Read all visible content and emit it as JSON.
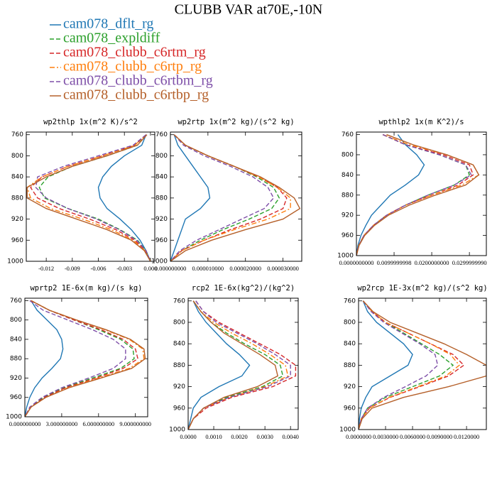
{
  "title": "CLUBB VAR at70E,-10N",
  "legend": [
    {
      "name": "cam078_dflt_rg",
      "color": "#1f77b4",
      "dash": "solid"
    },
    {
      "name": "cam078_expldiff",
      "color": "#2ca02c",
      "dash": "dash"
    },
    {
      "name": "cam078_clubb_c6rtm_rg",
      "color": "#d62728",
      "dash": "dash"
    },
    {
      "name": "cam078_clubb_c6rtp_rg",
      "color": "#ff7f0e",
      "dash": "dashdot"
    },
    {
      "name": "cam078_clubb_c6rtbm_rg",
      "color": "#7e4fa8",
      "dash": "dash"
    },
    {
      "name": "cam078_clubb_c6rtbp_rg",
      "color": "#b5602a",
      "dash": "solid"
    }
  ],
  "chart_data": [
    {
      "type": "line",
      "title": "wp2thlp   1x(m^2 K)/s^2",
      "yinvert": true,
      "y": [
        760,
        780,
        800,
        820,
        840,
        860,
        880,
        900,
        920,
        940,
        960,
        980,
        1000
      ],
      "xlim": [
        -0.0143,
        0.0005
      ],
      "xticks": [
        -0.012,
        -0.009,
        -0.006,
        -0.003,
        {
          "value": 0,
          "label": "0.000"
        }
      ],
      "ylim": [
        755,
        1000
      ],
      "yticks": [
        760,
        800,
        840,
        880,
        920,
        960,
        1000
      ],
      "series": [
        {
          "values": [
            -0.0005,
            -0.001,
            -0.003,
            -0.0045,
            -0.0055,
            -0.006,
            -0.0058,
            -0.005,
            -0.0035,
            -0.0022,
            -0.0012,
            -0.0005,
            0
          ]
        },
        {
          "values": [
            -0.0005,
            -0.0015,
            -0.005,
            -0.009,
            -0.0118,
            -0.0128,
            -0.0122,
            -0.0095,
            -0.006,
            -0.0035,
            -0.0015,
            -0.0005,
            0
          ]
        },
        {
          "values": [
            -0.0005,
            -0.0018,
            -0.0055,
            -0.0095,
            -0.0125,
            -0.0138,
            -0.013,
            -0.0105,
            -0.007,
            -0.004,
            -0.0018,
            -0.0006,
            0
          ]
        },
        {
          "values": [
            -0.0005,
            -0.0018,
            -0.0055,
            -0.0095,
            -0.0125,
            -0.0142,
            -0.0138,
            -0.0115,
            -0.0078,
            -0.0045,
            -0.002,
            -0.0006,
            0
          ]
        },
        {
          "values": [
            -0.0005,
            -0.002,
            -0.006,
            -0.01,
            -0.013,
            -0.0132,
            -0.012,
            -0.0095,
            -0.0062,
            -0.0036,
            -0.0016,
            -0.0005,
            0
          ]
        },
        {
          "values": [
            -0.0004,
            -0.0015,
            -0.005,
            -0.009,
            -0.012,
            -0.0142,
            -0.0142,
            -0.012,
            -0.0085,
            -0.005,
            -0.0022,
            -0.0007,
            0
          ]
        }
      ]
    },
    {
      "type": "line",
      "title": "wp2rtp   1x(m^2 kg)/(s^2 kg)",
      "yinvert": true,
      "y": [
        760,
        780,
        800,
        820,
        840,
        860,
        880,
        900,
        920,
        940,
        960,
        980,
        1000
      ],
      "xlim": [
        0,
        3.5e-05
      ],
      "xticks": [
        {
          "value": 0,
          "label": "0.000000000"
        },
        {
          "value": 1e-05,
          "label": "0.000010000"
        },
        {
          "value": 2e-05,
          "label": "0.000020000"
        },
        {
          "value": 3e-05,
          "label": "0.000030000"
        }
      ],
      "ylim": [
        755,
        1000
      ],
      "yticks": [
        760,
        800,
        840,
        880,
        920,
        960,
        1000
      ],
      "series": [
        {
          "values": [
            1e-06,
            2e-06,
            4e-06,
            6e-06,
            8e-06,
            1e-05,
            1.05e-05,
            8e-06,
            4e-06,
            3e-06,
            2e-06,
            1e-06,
            0
          ]
        },
        {
          "values": [
            1e-06,
            4e-06,
            1e-05,
            1.7e-05,
            2.3e-05,
            2.75e-05,
            2.9e-05,
            2.7e-05,
            2.1e-05,
            1.4e-05,
            8e-06,
            3e-06,
            0
          ]
        },
        {
          "values": [
            1e-06,
            4e-06,
            1e-05,
            1.7e-05,
            2.35e-05,
            2.85e-05,
            3.1e-05,
            3e-05,
            2.4e-05,
            1.6e-05,
            9e-06,
            3e-06,
            0
          ]
        },
        {
          "values": [
            1e-06,
            4e-06,
            1e-05,
            1.7e-05,
            2.35e-05,
            2.85e-05,
            3.2e-05,
            3.2e-05,
            2.6e-05,
            1.7e-05,
            9e-06,
            3e-06,
            0
          ]
        },
        {
          "values": [
            1e-06,
            3.5e-06,
            9e-06,
            1.6e-05,
            2.2e-05,
            2.6e-05,
            2.75e-05,
            2.5e-05,
            1.9e-05,
            1.3e-05,
            7e-06,
            2.5e-06,
            0
          ]
        },
        {
          "values": [
            1e-06,
            4e-06,
            1e-05,
            1.7e-05,
            2.4e-05,
            2.9e-05,
            3.3e-05,
            3.45e-05,
            3e-05,
            2e-05,
            1.1e-05,
            4e-06,
            0
          ]
        }
      ]
    },
    {
      "type": "line",
      "title": "wpthlp2   1x(m K^2)/s",
      "yinvert": true,
      "y": [
        760,
        780,
        800,
        820,
        840,
        860,
        880,
        900,
        920,
        940,
        960,
        980,
        1000
      ],
      "xlim": [
        0,
        0.0345
      ],
      "xticks": [
        {
          "value": 0,
          "label": "0.0000000000"
        },
        {
          "value": 0.01,
          "label": "0.0099999998"
        },
        {
          "value": 0.02,
          "label": "0.0200000000"
        },
        {
          "value": 0.03,
          "label": "0.0299999990"
        }
      ],
      "ylim": [
        755,
        1000
      ],
      "yticks": [
        760,
        800,
        840,
        880,
        920,
        960,
        1000
      ],
      "series": [
        {
          "values": [
            0.011,
            0.013,
            0.016,
            0.018,
            0.0165,
            0.013,
            0.009,
            0.0065,
            0.004,
            0.0025,
            0.0012,
            0.0004,
            0
          ]
        },
        {
          "values": [
            0.007,
            0.013,
            0.022,
            0.029,
            0.03,
            0.026,
            0.019,
            0.013,
            0.008,
            0.0045,
            0.002,
            0.0006,
            0
          ]
        },
        {
          "values": [
            0.007,
            0.013,
            0.023,
            0.03,
            0.031,
            0.027,
            0.02,
            0.013,
            0.008,
            0.0045,
            0.002,
            0.0006,
            0
          ]
        },
        {
          "values": [
            0.007,
            0.014,
            0.024,
            0.031,
            0.0325,
            0.028,
            0.02,
            0.013,
            0.008,
            0.0045,
            0.002,
            0.0006,
            0
          ]
        },
        {
          "values": [
            0.007,
            0.013,
            0.022,
            0.029,
            0.0305,
            0.026,
            0.019,
            0.013,
            0.008,
            0.0045,
            0.002,
            0.0006,
            0
          ]
        },
        {
          "values": [
            0.008,
            0.015,
            0.024,
            0.031,
            0.0325,
            0.029,
            0.021,
            0.014,
            0.0085,
            0.0048,
            0.0022,
            0.0007,
            0
          ]
        }
      ]
    },
    {
      "type": "line",
      "title": "wprtp2   1E-6x(m kg)/(s kg)",
      "yinvert": true,
      "y": [
        760,
        780,
        800,
        820,
        840,
        860,
        880,
        900,
        920,
        940,
        960,
        980,
        1000
      ],
      "xlim": [
        0,
        10
      ],
      "xticks": [
        {
          "value": 0,
          "label": "0.000000000"
        },
        {
          "value": 3,
          "label": "3.000000000"
        },
        {
          "value": 6,
          "label": "6.000000000"
        },
        {
          "value": 9,
          "label": "9.000000000"
        }
      ],
      "ylim": [
        755,
        1000
      ],
      "yticks": [
        760,
        800,
        840,
        880,
        920,
        960,
        1000
      ],
      "series": [
        {
          "values": [
            0.5,
            1,
            1.8,
            2.6,
            3.0,
            3.1,
            2.9,
            2.2,
            1.4,
            0.8,
            0.4,
            0.15,
            0
          ]
        },
        {
          "values": [
            0.5,
            2,
            4,
            6,
            7.8,
            8.8,
            8.9,
            7.8,
            5.5,
            3.2,
            1.5,
            0.5,
            0
          ]
        },
        {
          "values": [
            0.5,
            2,
            4,
            6.2,
            8,
            9,
            9.2,
            8,
            5.8,
            3.3,
            1.6,
            0.5,
            0
          ]
        },
        {
          "values": [
            0.5,
            2,
            4.2,
            6.5,
            8.5,
            9.6,
            9.7,
            8.5,
            6,
            3.5,
            1.7,
            0.5,
            0
          ]
        },
        {
          "values": [
            0.4,
            1.5,
            3.5,
            5.5,
            7.2,
            8.2,
            8.2,
            7.2,
            5.2,
            3,
            1.4,
            0.4,
            0
          ]
        },
        {
          "values": [
            0.5,
            2,
            4.2,
            6.6,
            8.6,
            9.7,
            9.8,
            8.7,
            6.2,
            3.6,
            1.7,
            0.5,
            0
          ]
        }
      ]
    },
    {
      "type": "line",
      "title": "rcp2   1E-6x(kg^2)/(kg^2)",
      "yinvert": true,
      "y": [
        760,
        780,
        800,
        820,
        840,
        860,
        880,
        900,
        920,
        940,
        960,
        980,
        1000
      ],
      "xlim": [
        0,
        0.0043
      ],
      "xticks": [
        {
          "value": 0,
          "label": "0.0000"
        },
        {
          "value": 0.001,
          "label": "0.0010"
        },
        {
          "value": 0.002,
          "label": "0.0020"
        },
        {
          "value": 0.003,
          "label": "0.0030"
        },
        {
          "value": 0.004,
          "label": "0.0040"
        }
      ],
      "ylim": [
        755,
        1000
      ],
      "yticks": [
        760,
        800,
        840,
        880,
        920,
        960,
        1000
      ],
      "series": [
        {
          "values": [
            0.0002,
            0.0004,
            0.0007,
            0.0011,
            0.0015,
            0.002,
            0.0024,
            0.0021,
            0.0012,
            0.0005,
            0.0002,
            0.0001,
            0
          ]
        },
        {
          "values": [
            0.0002,
            0.0005,
            0.0009,
            0.0015,
            0.0022,
            0.003,
            0.0036,
            0.0037,
            0.0029,
            0.0015,
            0.0006,
            0.0002,
            0
          ]
        },
        {
          "values": [
            0.0003,
            0.0006,
            0.0012,
            0.002,
            0.0028,
            0.0036,
            0.0042,
            0.0042,
            0.0033,
            0.0017,
            0.0007,
            0.0002,
            0
          ]
        },
        {
          "values": [
            0.0002,
            0.0005,
            0.001,
            0.0017,
            0.0025,
            0.0032,
            0.0038,
            0.0039,
            0.003,
            0.0016,
            0.0006,
            0.0002,
            0
          ]
        },
        {
          "values": [
            0.0003,
            0.0006,
            0.0011,
            0.0019,
            0.0027,
            0.0034,
            0.004,
            0.004,
            0.0031,
            0.0016,
            0.0006,
            0.0002,
            0
          ]
        },
        {
          "values": [
            0.0002,
            0.0005,
            0.0009,
            0.0014,
            0.0021,
            0.0028,
            0.0034,
            0.0035,
            0.0027,
            0.0014,
            0.0006,
            0.0002,
            0
          ]
        }
      ]
    },
    {
      "type": "line",
      "title": "wp2rcp   1E-3x(m^2 kg)/(s^2 kg)",
      "yinvert": true,
      "y": [
        760,
        780,
        800,
        820,
        840,
        860,
        880,
        900,
        920,
        940,
        960,
        980,
        1000
      ],
      "xlim": [
        0,
        0.0142
      ],
      "xticks": [
        {
          "value": 0,
          "label": "0.0000000"
        },
        {
          "value": 0.003,
          "label": "0.0030000"
        },
        {
          "value": 0.006,
          "label": "0.0060000"
        },
        {
          "value": 0.009,
          "label": "0.0090000"
        },
        {
          "value": 0.012,
          "label": "0.0120000"
        }
      ],
      "ylim": [
        755,
        1000
      ],
      "yticks": [
        760,
        800,
        840,
        880,
        920,
        960,
        1000
      ],
      "series": [
        {
          "values": [
            0.0005,
            0.001,
            0.002,
            0.0035,
            0.005,
            0.006,
            0.0055,
            0.0035,
            0.0015,
            0.0008,
            0.0003,
            0.0001,
            0
          ]
        },
        {
          "values": [
            0.0005,
            0.0015,
            0.003,
            0.005,
            0.007,
            0.009,
            0.0105,
            0.009,
            0.006,
            0.003,
            0.001,
            0.0003,
            0
          ]
        },
        {
          "values": [
            0.0005,
            0.0015,
            0.003,
            0.0055,
            0.008,
            0.0105,
            0.0117,
            0.01,
            0.0068,
            0.0035,
            0.0012,
            0.0003,
            0
          ]
        },
        {
          "values": [
            0.0005,
            0.0015,
            0.003,
            0.0055,
            0.008,
            0.0102,
            0.0112,
            0.0097,
            0.0066,
            0.0034,
            0.0012,
            0.0003,
            0
          ]
        },
        {
          "values": [
            0.0005,
            0.0014,
            0.0028,
            0.0048,
            0.0068,
            0.0085,
            0.0088,
            0.0075,
            0.0052,
            0.0028,
            0.001,
            0.0003,
            0
          ]
        },
        {
          "values": [
            0.0005,
            0.0016,
            0.0035,
            0.0065,
            0.0095,
            0.012,
            0.0142,
            0.0142,
            0.01,
            0.005,
            0.0015,
            0.0004,
            0
          ]
        }
      ]
    }
  ]
}
